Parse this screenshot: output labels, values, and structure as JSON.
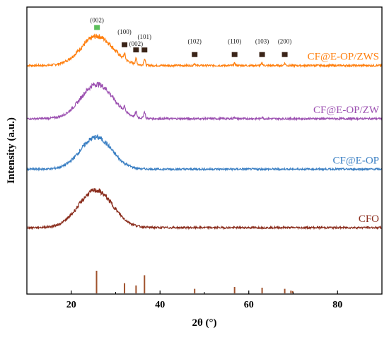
{
  "chart_data": {
    "type": "line",
    "xlabel": "2θ (°)",
    "ylabel": "Intensity (a.u.)",
    "xlim": [
      10,
      90
    ],
    "xticks": [
      20,
      40,
      60,
      80
    ],
    "yticks": [],
    "grid": false,
    "series": [
      {
        "name": "CF@E-OP/ZWS",
        "color": "#ff7f0e",
        "baseline": 3.2,
        "hump": {
          "center": 25.8,
          "height": 0.55,
          "width": 3.6
        },
        "peaks": [
          [
            32.0,
            0.1
          ],
          [
            34.6,
            0.1
          ],
          [
            36.5,
            0.12
          ],
          [
            47.8,
            0.04
          ],
          [
            56.8,
            0.04
          ],
          [
            63.0,
            0.04
          ],
          [
            68.1,
            0.04
          ]
        ]
      },
      {
        "name": "CF@E-OP/ZW",
        "color": "#9b4fb0",
        "baseline": 2.2,
        "hump": {
          "center": 25.8,
          "height": 0.65,
          "width": 3.6
        },
        "peaks": [
          [
            32.0,
            0.1
          ],
          [
            34.6,
            0.1
          ],
          [
            36.5,
            0.12
          ],
          [
            56.8,
            0.03
          ],
          [
            63.0,
            0.03
          ]
        ]
      },
      {
        "name": "CF@E-OP",
        "color": "#3a7fc3",
        "baseline": 1.25,
        "hump": {
          "center": 25.6,
          "height": 0.6,
          "width": 3.5
        },
        "peaks": []
      },
      {
        "name": "CFO",
        "color": "#8b2e1e",
        "baseline": 0.15,
        "hump": {
          "center": 25.5,
          "height": 0.7,
          "width": 3.8
        },
        "peaks": []
      }
    ],
    "reference_lines": {
      "color": "#a0522d",
      "positions": [
        25.7,
        32.0,
        34.6,
        36.5,
        47.8,
        56.8,
        63.0,
        68.1,
        69.5,
        69.9
      ],
      "heights": [
        1.0,
        0.45,
        0.35,
        0.8,
        0.2,
        0.28,
        0.25,
        0.2,
        0.12,
        0.1
      ]
    },
    "peak_labels": {
      "color_green": "#5bbf5b",
      "color_dark": "#3a2418",
      "items": [
        {
          "text": "(002)",
          "x": 25.8,
          "marker": "green"
        },
        {
          "text": "(100)",
          "x": 32.0,
          "marker": "dark"
        },
        {
          "text": "(002)",
          "x": 34.6,
          "marker": "dark"
        },
        {
          "text": "(101)",
          "x": 36.5,
          "marker": "dark"
        },
        {
          "text": "(102)",
          "x": 47.8,
          "marker": "dark"
        },
        {
          "text": "(110)",
          "x": 56.8,
          "marker": "dark"
        },
        {
          "text": "(103)",
          "x": 63.0,
          "marker": "dark"
        },
        {
          "text": "(200)",
          "x": 68.1,
          "marker": "dark"
        }
      ]
    }
  }
}
